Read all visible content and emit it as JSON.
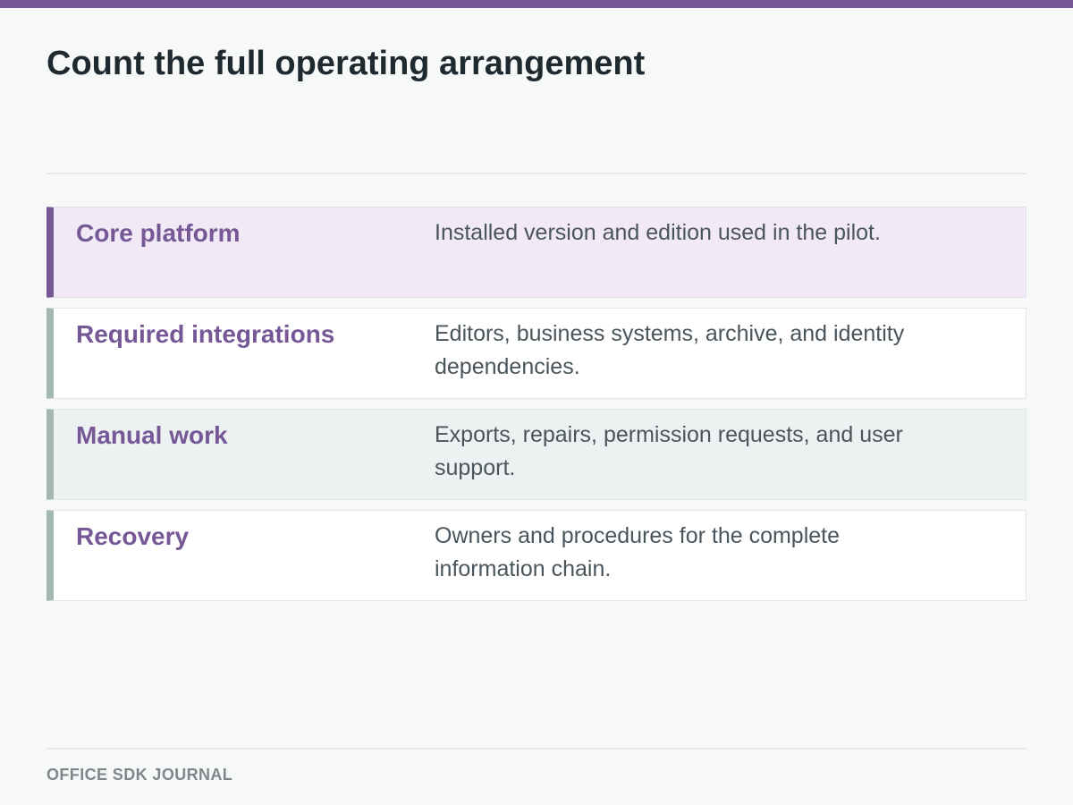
{
  "header": {
    "title": "Count the full operating arrangement"
  },
  "rows": [
    {
      "label": "Core platform",
      "description": "Installed version and edition used in the pilot."
    },
    {
      "label": "Required integrations",
      "description": "Editors, business systems, archive, and identity dependencies."
    },
    {
      "label": "Manual work",
      "description": "Exports, repairs, permission requests, and user support."
    },
    {
      "label": "Recovery",
      "description": "Owners and procedures for the complete information chain."
    }
  ],
  "footer": {
    "label": "OFFICE SDK JOURNAL"
  },
  "colors": {
    "accent": "#765896",
    "muted_bar": "#a3b8b0",
    "highlight_bg": "#f1e9f5"
  }
}
